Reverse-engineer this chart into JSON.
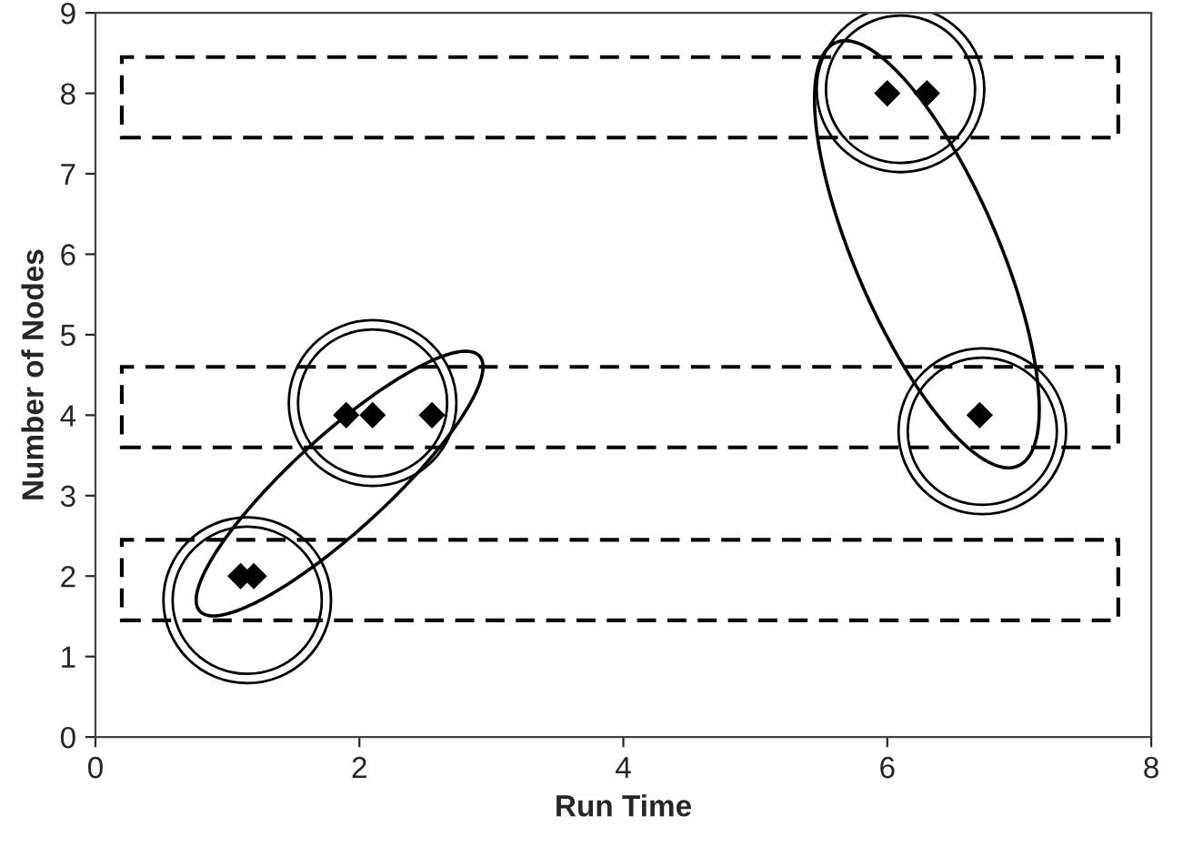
{
  "chart_data": {
    "type": "scatter",
    "xlabel": "Run Time",
    "ylabel": "Number of Nodes",
    "x": [
      1.1,
      1.2,
      1.9,
      2.1,
      2.55,
      6.0,
      6.3,
      6.7
    ],
    "values": [
      2,
      2,
      4,
      4,
      4,
      8,
      8,
      4
    ],
    "color": "#000000",
    "marker": "diamond",
    "xlim": [
      0,
      8
    ],
    "ylim": [
      0,
      9
    ],
    "xticks": [
      0,
      2,
      4,
      6,
      8
    ],
    "yticks": [
      0,
      1,
      2,
      3,
      4,
      5,
      6,
      7,
      8,
      9
    ],
    "grid": false
  }
}
